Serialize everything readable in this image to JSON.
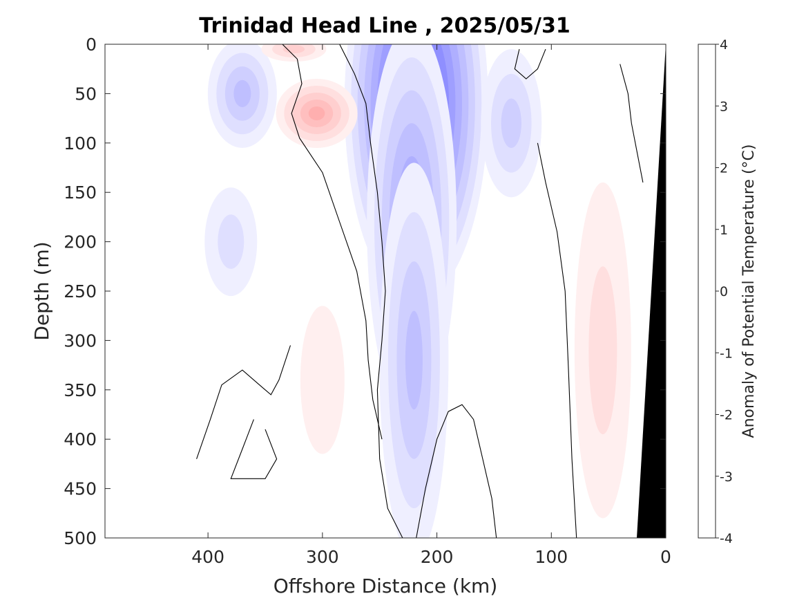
{
  "chart_data": {
    "type": "heatmap",
    "title": "Trinidad Head Line , 2025/05/31",
    "xlabel": "Offshore Distance (km)",
    "ylabel": "Depth (m)",
    "xlim": [
      490,
      0
    ],
    "ylim": [
      0,
      500
    ],
    "x_ticks": [
      "400",
      "300",
      "200",
      "100",
      "0"
    ],
    "y_ticks": [
      "0",
      "50",
      "100",
      "150",
      "200",
      "250",
      "300",
      "350",
      "400",
      "450",
      "500"
    ],
    "colorbar": {
      "label": "Anomaly of Potential Temperature (°C)",
      "range": [
        -4,
        4
      ],
      "step": 0.25,
      "ticks": [
        "4",
        "3",
        "2",
        "1",
        "0",
        "-1",
        "-2",
        "-3",
        "-4"
      ],
      "colors": {
        "negative": "#0000ff",
        "zero": "#ffffff",
        "positive": "#ff0000"
      }
    },
    "data_extent_km": [
      410,
      0
    ],
    "anomaly_features": [
      {
        "sign": "negative",
        "peak_anomaly": -2.8,
        "center_km": 218,
        "center_depth_m": 60,
        "depth_range_m": [
          0,
          400
        ]
      },
      {
        "sign": "negative",
        "peak_anomaly": -1.5,
        "center_km": 222,
        "center_depth_m": 180,
        "depth_range_m": [
          0,
          400
        ]
      },
      {
        "sign": "negative",
        "peak_anomaly": -1.0,
        "center_km": 220,
        "center_depth_m": 320,
        "depth_range_m": [
          0,
          400
        ]
      },
      {
        "sign": "negative",
        "peak_anomaly": -1.0,
        "center_km": 370,
        "center_depth_m": 50,
        "depth_range_m": [
          0,
          110
        ]
      },
      {
        "sign": "negative",
        "peak_anomaly": -0.6,
        "center_km": 380,
        "center_depth_m": 200,
        "depth_range_m": [
          150,
          260
        ]
      },
      {
        "sign": "negative",
        "peak_anomaly": -0.8,
        "center_km": 135,
        "center_depth_m": 80,
        "depth_range_m": [
          0,
          150
        ]
      },
      {
        "sign": "positive",
        "peak_anomaly": 1.3,
        "center_km": 305,
        "center_depth_m": 70,
        "depth_range_m": [
          40,
          110
        ]
      },
      {
        "sign": "positive",
        "peak_anomaly": 0.9,
        "center_km": 325,
        "center_depth_m": 5,
        "depth_range_m": [
          0,
          25
        ]
      },
      {
        "sign": "positive",
        "peak_anomaly": 0.4,
        "center_km": 300,
        "center_depth_m": 340,
        "depth_range_m": [
          250,
          400
        ]
      },
      {
        "sign": "positive",
        "peak_anomaly": 0.7,
        "center_km": 55,
        "center_depth_m": 310,
        "depth_range_m": [
          160,
          500
        ]
      }
    ],
    "zero_contour": "black lines",
    "bathymetry": "black wedge near 0 km, from surface at 0 km down to 500 m at about 25 km",
    "grid": false
  }
}
